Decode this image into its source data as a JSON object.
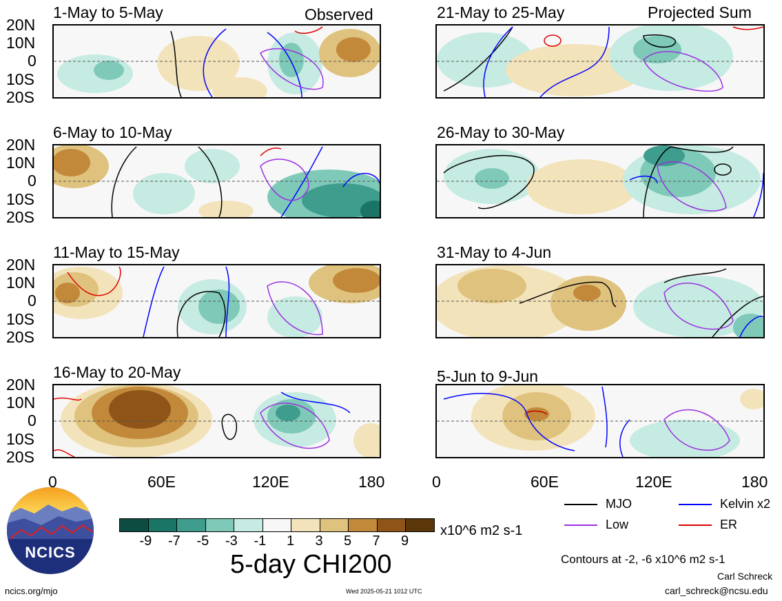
{
  "panels_left": [
    {
      "title": "1-May to 5-May",
      "header": "Observed"
    },
    {
      "title": "6-May to 10-May",
      "header": ""
    },
    {
      "title": "11-May to 15-May",
      "header": ""
    },
    {
      "title": "16-May to 20-May",
      "header": ""
    }
  ],
  "panels_right": [
    {
      "title": "21-May to 25-May",
      "header": "Projected Sum"
    },
    {
      "title": "26-May to 30-May",
      "header": ""
    },
    {
      "title": "31-May to 4-Jun",
      "header": ""
    },
    {
      "title": "5-Jun to 9-Jun",
      "header": ""
    }
  ],
  "lat_labels": [
    "20N",
    "10N",
    "0",
    "10S",
    "20S"
  ],
  "lon_labels": [
    "0",
    "60E",
    "120E",
    "180"
  ],
  "colorbar": {
    "ticks": [
      "-9",
      "-7",
      "-5",
      "-3",
      "-1",
      "1",
      "3",
      "5",
      "7",
      "9"
    ],
    "colors": [
      "#0d4c40",
      "#1b7566",
      "#3f9d8e",
      "#7ec9b8",
      "#c6ebe2",
      "#f7f7f7",
      "#f3e3ba",
      "#dfc27d",
      "#c2893b",
      "#8e5418",
      "#5a3608"
    ],
    "units": "x10^6 m2 s-1",
    "title": "5-day CHI200"
  },
  "legend": [
    {
      "label": "MJO",
      "color": "#000000"
    },
    {
      "label": "Kelvin x2",
      "color": "#0000ff"
    },
    {
      "label": "Low",
      "color": "#9a30e0"
    },
    {
      "label": "ER",
      "color": "#e00000"
    }
  ],
  "contour_note": "Contours at -2, -6 x10^6 m2 s-1",
  "credit_name": "Carl Schreck",
  "credit_email": "carl_schreck@ncsu.edu",
  "site": "ncics.org/mjo",
  "timestamp": "Wed 2025-05-21 1012 UTC",
  "logo_text": "NCICS"
}
